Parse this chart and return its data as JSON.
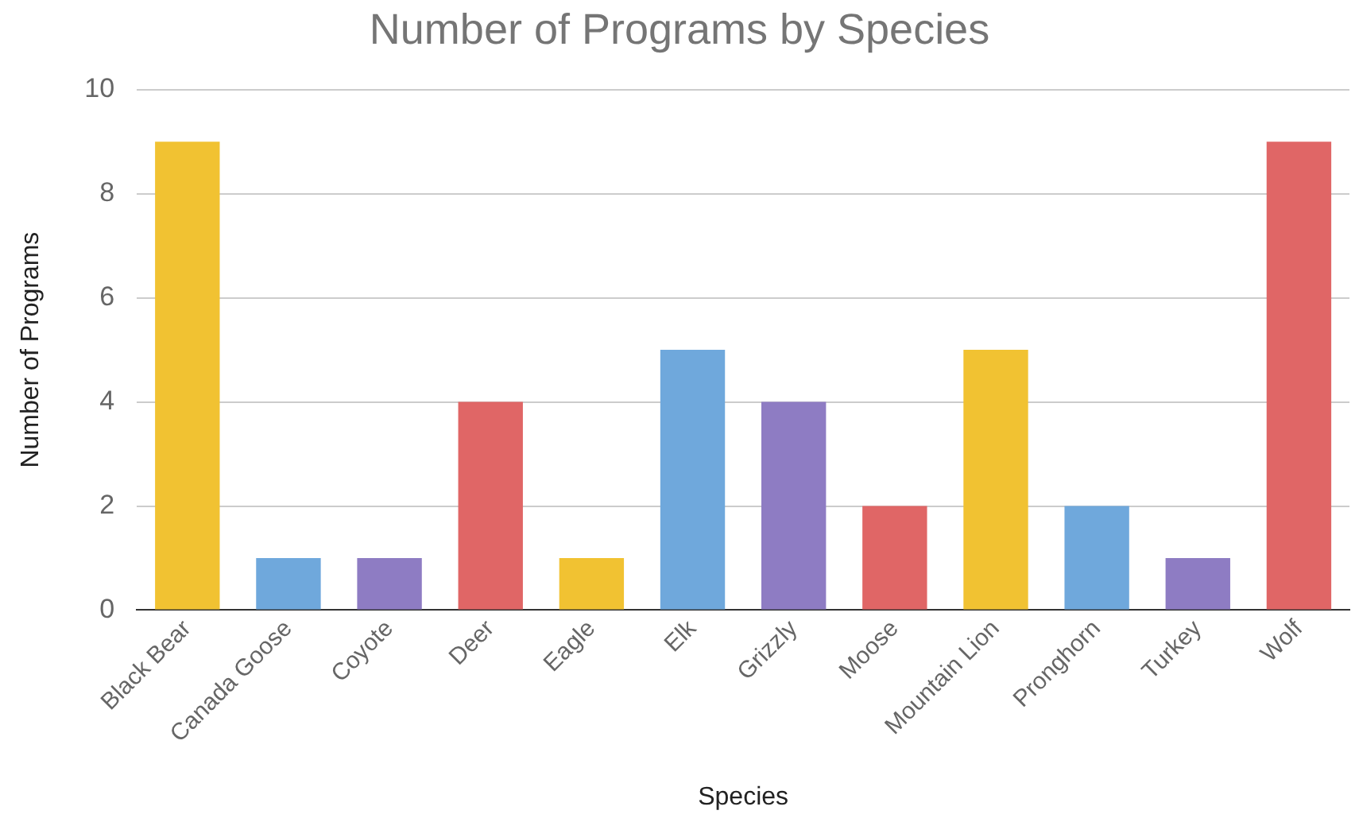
{
  "chart_data": {
    "type": "bar",
    "title": "Number of Programs by Species",
    "xlabel": "Species",
    "ylabel": "Number of Programs",
    "categories": [
      "Black Bear",
      "Canada Goose",
      "Coyote",
      "Deer",
      "Eagle",
      "Elk",
      "Grizzly",
      "Moose",
      "Mountain Lion",
      "Pronghorn",
      "Turkey",
      "Wolf"
    ],
    "values": [
      9,
      1,
      1,
      4,
      1,
      5,
      4,
      2,
      5,
      2,
      1,
      9
    ],
    "colors": [
      "#f1c232",
      "#6fa8dc",
      "#8e7cc3",
      "#e06666",
      "#f1c232",
      "#6fa8dc",
      "#8e7cc3",
      "#e06666",
      "#f1c232",
      "#6fa8dc",
      "#8e7cc3",
      "#e06666"
    ],
    "ylim": [
      0,
      10
    ],
    "yticks": [
      0,
      2,
      4,
      6,
      8,
      10
    ],
    "grid": "y",
    "legend": false
  }
}
